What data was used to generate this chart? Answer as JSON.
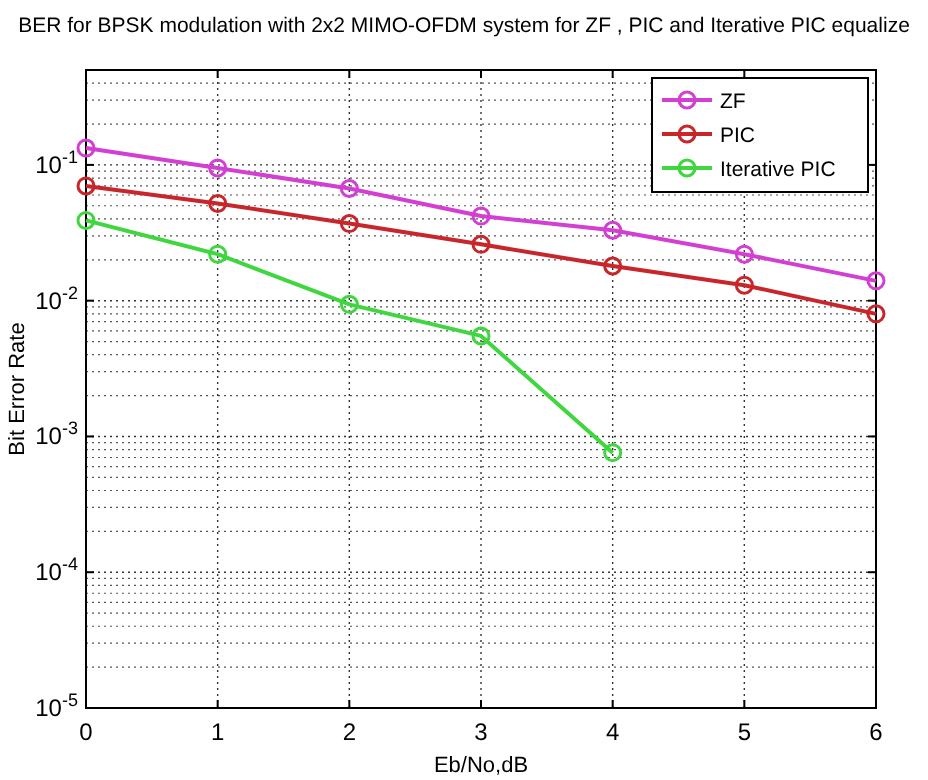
{
  "chart_data": {
    "type": "line",
    "title": "BER for BPSK modulation with 2x2 MIMO-OFDM system for ZF , PIC and Iterative PIC equalize",
    "xlabel": "Eb/No,dB",
    "ylabel": "Bit Error Rate",
    "x": [
      0,
      1,
      2,
      3,
      4,
      5,
      6
    ],
    "log": "y",
    "xlim": [
      0,
      6
    ],
    "xticks": [
      0,
      1,
      2,
      3,
      4,
      5,
      6
    ],
    "ylim": [
      1e-05,
      0.5
    ],
    "yticks": [
      {
        "value": 1e-05,
        "label": "10$^{-5}$"
      },
      {
        "value": 0.0001,
        "label": "10$^{-4}$"
      },
      {
        "value": 0.001,
        "label": "10$^{-3}$"
      },
      {
        "value": 0.01,
        "label": "10$^{-2}$"
      },
      {
        "value": 0.1,
        "label": "10$^{-1}$"
      }
    ],
    "grid": true,
    "legend": "top right",
    "marker": "circle",
    "line_style": "solid",
    "series": [
      {
        "name": "ZF",
        "color": "#d23fd2",
        "values": [
          0.133,
          0.095,
          0.067,
          0.042,
          0.033,
          0.022,
          0.014
        ]
      },
      {
        "name": "PIC",
        "color": "#c8262a",
        "values": [
          0.07,
          0.052,
          0.037,
          0.026,
          0.018,
          0.013,
          0.008
        ]
      },
      {
        "name": "Iterative PIC",
        "color": "#3fd63f",
        "values": [
          0.039,
          0.022,
          0.0094,
          0.0055,
          0.00076,
          null,
          null
        ]
      }
    ]
  }
}
